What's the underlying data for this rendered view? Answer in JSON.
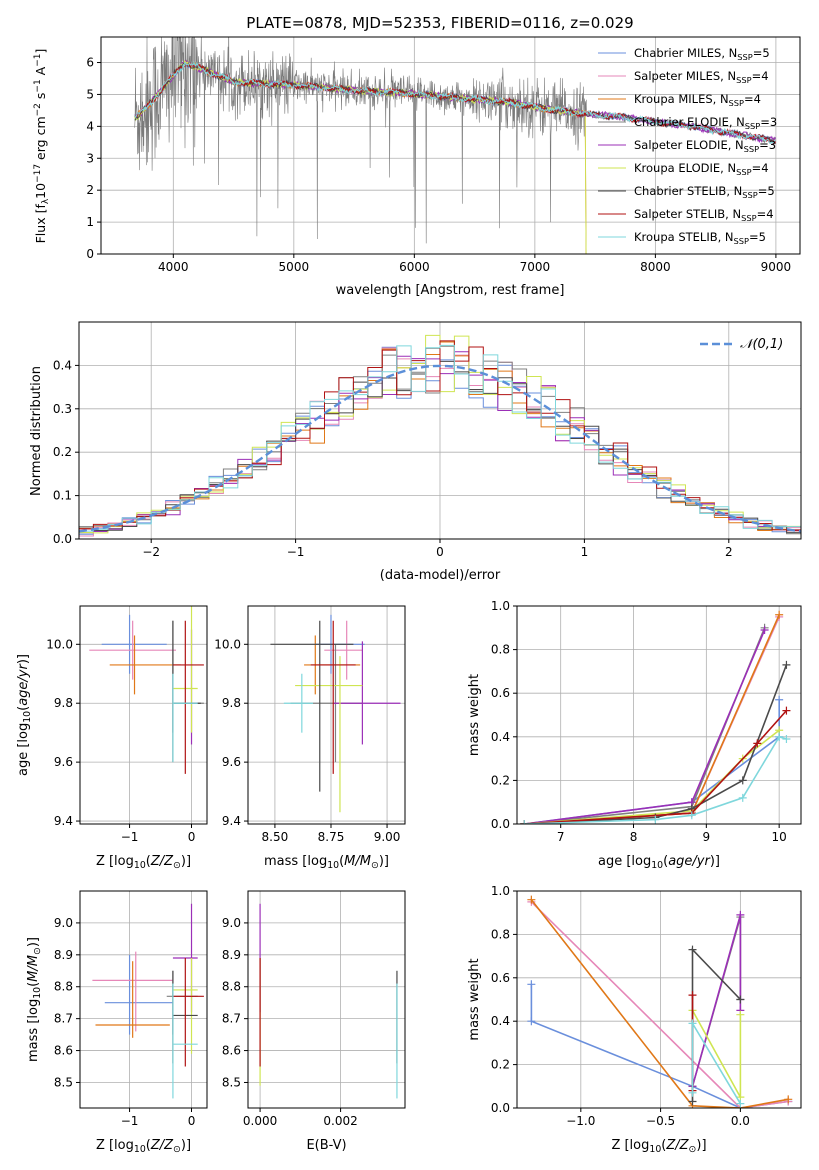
{
  "title": "PLATE=0878, MJD=52353, FIBERID=0116, z=0.029",
  "colors": {
    "chabrier_miles": "#6a8fdc",
    "salpeter_miles": "#e687b8",
    "kroupa_miles": "#e07818",
    "chabrier_elodie": "#808080",
    "salpeter_elodie": "#9b2fb7",
    "kroupa_elodie": "#cfe552",
    "chabrier_stelib": "#4a4a4a",
    "salpeter_stelib": "#b01212",
    "kroupa_stelib": "#7fd7dc",
    "gauss": "#5b8fd8"
  },
  "chart_data": [
    {
      "type": "line",
      "xlabel": "wavelength [Angstrom, rest frame]",
      "ylabel": "Flux [f_λ10^-17 erg cm^-2 s^-1 A^-1]",
      "xlim": [
        3400,
        9200
      ],
      "ylim": [
        0,
        6.8
      ],
      "xticks": [
        4000,
        5000,
        6000,
        7000,
        8000,
        9000
      ],
      "yticks": [
        0,
        1,
        2,
        3,
        4,
        5,
        6
      ],
      "legend_position": "right",
      "legend": [
        {
          "label": "Chabrier MILES, N",
          "sub": "SSP",
          "suffix": "=5",
          "color_key": "chabrier_miles"
        },
        {
          "label": "Salpeter MILES, N",
          "sub": "SSP",
          "suffix": "=4",
          "color_key": "salpeter_miles"
        },
        {
          "label": "Kroupa MILES, N",
          "sub": "SSP",
          "suffix": "=4",
          "color_key": "kroupa_miles"
        },
        {
          "label": "Chabrier ELODIE, N",
          "sub": "SSP",
          "suffix": "=3",
          "color_key": "chabrier_elodie"
        },
        {
          "label": "Salpeter ELODIE, N",
          "sub": "SSP",
          "suffix": "=3",
          "color_key": "salpeter_elodie"
        },
        {
          "label": "Kroupa ELODIE, N",
          "sub": "SSP",
          "suffix": "=4",
          "color_key": "kroupa_elodie"
        },
        {
          "label": "Chabrier STELIB, N",
          "sub": "SSP",
          "suffix": "=5",
          "color_key": "chabrier_stelib"
        },
        {
          "label": "Salpeter STELIB, N",
          "sub": "SSP",
          "suffix": "=4",
          "color_key": "salpeter_stelib"
        },
        {
          "label": "Kroupa STELIB, N",
          "sub": "SSP",
          "suffix": "=5",
          "color_key": "kroupa_stelib"
        }
      ],
      "data_range": [
        3680,
        7430
      ],
      "model_range": [
        3680,
        9000
      ],
      "model_anchors_x": [
        3700,
        3850,
        4000,
        4100,
        4300,
        4500,
        4700,
        5000,
        5300,
        5600,
        5900,
        6200,
        6500,
        6800,
        7100,
        7400,
        7700,
        8000,
        8300,
        8600,
        9000
      ],
      "model_anchors_y": [
        4.3,
        4.9,
        5.6,
        6.0,
        5.7,
        5.4,
        5.35,
        5.3,
        5.2,
        5.1,
        5.05,
        4.95,
        4.85,
        4.75,
        4.55,
        4.4,
        4.3,
        4.15,
        4.0,
        3.8,
        3.55
      ]
    },
    {
      "type": "line",
      "xlabel": "(data-model)/error",
      "ylabel": "Normed distribution",
      "xlim": [
        -2.5,
        2.5
      ],
      "ylim": [
        0,
        0.5
      ],
      "xticks": [
        -2,
        -1,
        0,
        1,
        2
      ],
      "yticks": [
        0.0,
        0.1,
        0.2,
        0.3,
        0.4
      ],
      "legend_position": "top-right",
      "legend_label": "𝒩(0,1)",
      "bin_width": 0.1,
      "gauss": {
        "mean": 0,
        "sigma": 1
      }
    },
    {
      "type": "scatter",
      "xlabel": "Z [log10(Z/Z⊙)]",
      "ylabel": "age  [log10(age/yr)]",
      "xlim": [
        -1.8,
        0.25
      ],
      "ylim": [
        9.39,
        10.13
      ],
      "xticks": [
        -1,
        0
      ],
      "yticks": [
        9.4,
        9.6,
        9.8,
        10.0
      ],
      "points": [
        {
          "series": "chabrier_miles",
          "x": -1.0,
          "xerr": [
            0.45,
            0.6
          ],
          "y": 10.0,
          "yerr": [
            0.1,
            0.1
          ]
        },
        {
          "series": "salpeter_miles",
          "x": -0.95,
          "xerr": [
            0.7,
            0.7
          ],
          "y": 9.98,
          "yerr": [
            0.1,
            0.1
          ]
        },
        {
          "series": "kroupa_miles",
          "x": -0.92,
          "xerr": [
            0.4,
            0.75
          ],
          "y": 9.93,
          "yerr": [
            0.1,
            0.1
          ]
        },
        {
          "series": "chabrier_elodie",
          "x": -0.3,
          "xerr": [
            0.0,
            0.5
          ],
          "y": 9.8,
          "yerr": [
            0.1,
            0.28
          ]
        },
        {
          "series": "salpeter_elodie",
          "x": 0.0,
          "xerr": [
            0.1,
            0.1
          ],
          "y": 9.8,
          "yerr": [
            0.14,
            0.25
          ]
        },
        {
          "series": "kroupa_elodie",
          "x": 0.0,
          "xerr": [
            0.3,
            0.1
          ],
          "y": 9.85,
          "yerr": [
            0.15,
            0.42
          ]
        },
        {
          "series": "chabrier_stelib",
          "x": -0.3,
          "xerr": [
            0.0,
            0.45
          ],
          "y": 9.8,
          "yerr": [
            0.2,
            0.28
          ]
        },
        {
          "series": "salpeter_stelib",
          "x": -0.1,
          "xerr": [
            0.2,
            0.3
          ],
          "y": 9.93,
          "yerr": [
            0.37,
            0.15
          ]
        },
        {
          "series": "kroupa_stelib",
          "x": -0.3,
          "xerr": [
            0.0,
            0.4
          ],
          "y": 9.8,
          "yerr": [
            0.2,
            0.1
          ]
        }
      ]
    },
    {
      "type": "scatter",
      "xlabel": "mass [log10(M/M⊙)]",
      "ylabel": "",
      "xlim": [
        8.38,
        9.08
      ],
      "ylim": [
        9.39,
        10.13
      ],
      "xticks": [
        8.5,
        8.75,
        9.0
      ],
      "yticks": [
        9.4,
        9.6,
        9.8,
        10.0
      ],
      "points": [
        {
          "series": "chabrier_miles",
          "x": 8.75,
          "xerr": [
            0.07,
            0.15
          ],
          "y": 10.0,
          "yerr": [
            0.1,
            0.1
          ]
        },
        {
          "series": "salpeter_miles",
          "x": 8.82,
          "xerr": [
            0.1,
            0.07
          ],
          "y": 9.98,
          "yerr": [
            0.1,
            0.1
          ]
        },
        {
          "series": "kroupa_miles",
          "x": 8.68,
          "xerr": [
            0.05,
            0.2
          ],
          "y": 9.93,
          "yerr": [
            0.1,
            0.1
          ]
        },
        {
          "series": "chabrier_elodie",
          "x": 8.77,
          "xerr": [
            0.2,
            0.12
          ],
          "y": 9.8,
          "yerr": [
            0.2,
            0.2
          ]
        },
        {
          "series": "salpeter_elodie",
          "x": 8.89,
          "xerr": [
            0.13,
            0.17
          ],
          "y": 9.8,
          "yerr": [
            0.14,
            0.21
          ]
        },
        {
          "series": "kroupa_elodie",
          "x": 8.79,
          "xerr": [
            0.2,
            0.1
          ],
          "y": 9.86,
          "yerr": [
            0.43,
            0.1
          ]
        },
        {
          "series": "chabrier_stelib",
          "x": 8.7,
          "xerr": [
            0.22,
            0.15
          ],
          "y": 10.0,
          "yerr": [
            0.5,
            0.08
          ]
        },
        {
          "series": "salpeter_stelib",
          "x": 8.76,
          "xerr": [
            0.1,
            0.1
          ],
          "y": 9.93,
          "yerr": [
            0.37,
            0.15
          ]
        },
        {
          "series": "kroupa_stelib",
          "x": 8.62,
          "xerr": [
            0.08,
            0.05
          ],
          "y": 9.8,
          "yerr": [
            0.1,
            0.1
          ]
        }
      ]
    },
    {
      "type": "line",
      "xlabel": "age  [log10(age/yr)]",
      "ylabel": "mass weight",
      "xlim": [
        6.4,
        10.3
      ],
      "ylim": [
        0,
        1
      ],
      "xticks": [
        7,
        8,
        9,
        10
      ],
      "yticks": [
        0.0,
        0.2,
        0.4,
        0.6,
        0.8,
        1.0
      ],
      "series": [
        {
          "name": "chabrier_miles",
          "x": [
            6.5,
            8.8,
            10.0,
            10.0
          ],
          "y": [
            0.0,
            0.1,
            0.4,
            0.57
          ]
        },
        {
          "name": "salpeter_miles",
          "x": [
            6.5,
            8.8,
            10.0
          ],
          "y": [
            0.0,
            0.05,
            0.95
          ]
        },
        {
          "name": "kroupa_miles",
          "x": [
            6.5,
            8.8,
            10.0
          ],
          "y": [
            0.0,
            0.05,
            0.96
          ]
        },
        {
          "name": "chabrier_elodie",
          "x": [
            6.5,
            8.8,
            9.8
          ],
          "y": [
            0.0,
            0.08,
            0.9
          ]
        },
        {
          "name": "salpeter_elodie",
          "x": [
            6.5,
            8.8,
            9.8
          ],
          "y": [
            0.0,
            0.1,
            0.89
          ]
        },
        {
          "name": "kroupa_elodie",
          "x": [
            6.5,
            8.8,
            9.5,
            10.0
          ],
          "y": [
            0.0,
            0.06,
            0.3,
            0.43
          ]
        },
        {
          "name": "chabrier_stelib",
          "x": [
            6.5,
            8.3,
            8.8,
            9.5,
            10.1
          ],
          "y": [
            0.0,
            0.03,
            0.07,
            0.2,
            0.73
          ]
        },
        {
          "name": "salpeter_stelib",
          "x": [
            6.5,
            8.8,
            9.7,
            10.1
          ],
          "y": [
            0.0,
            0.05,
            0.37,
            0.52
          ]
        },
        {
          "name": "kroupa_stelib",
          "x": [
            6.5,
            8.3,
            8.8,
            9.5,
            10.0,
            10.1
          ],
          "y": [
            0.0,
            0.02,
            0.04,
            0.12,
            0.4,
            0.39
          ]
        }
      ]
    },
    {
      "type": "scatter",
      "xlabel": "Z [log10(Z/Z⊙)]",
      "ylabel": "mass [log10(M/M⊙)]",
      "xlim": [
        -1.8,
        0.25
      ],
      "ylim": [
        8.42,
        9.1
      ],
      "xticks": [
        -1,
        0
      ],
      "yticks": [
        8.5,
        8.6,
        8.7,
        8.8,
        8.9,
        9.0
      ],
      "points": [
        {
          "series": "chabrier_miles",
          "x": -1.0,
          "xerr": [
            0.4,
            0.7
          ],
          "y": 8.75,
          "yerr": [
            0.1,
            0.15
          ]
        },
        {
          "series": "salpeter_miles",
          "x": -0.9,
          "xerr": [
            0.7,
            0.6
          ],
          "y": 8.82,
          "yerr": [
            0.16,
            0.09
          ]
        },
        {
          "series": "kroupa_miles",
          "x": -0.95,
          "xerr": [
            0.6,
            0.6
          ],
          "y": 8.68,
          "yerr": [
            0.04,
            0.2
          ]
        },
        {
          "series": "chabrier_elodie",
          "x": -0.3,
          "xerr": [
            0.1,
            0.4
          ],
          "y": 8.77,
          "yerr": [
            0.12,
            0.08
          ]
        },
        {
          "series": "salpeter_elodie",
          "x": 0.0,
          "xerr": [
            0.3,
            0.1
          ],
          "y": 8.89,
          "yerr": [
            0.17,
            0.17
          ]
        },
        {
          "series": "kroupa_elodie",
          "x": 0.0,
          "xerr": [
            0.3,
            0.1
          ],
          "y": 8.79,
          "yerr": [
            0.2,
            0.1
          ]
        },
        {
          "series": "chabrier_stelib",
          "x": -0.3,
          "xerr": [
            0.0,
            0.4
          ],
          "y": 8.71,
          "yerr": [
            0.15,
            0.14
          ]
        },
        {
          "series": "salpeter_stelib",
          "x": -0.1,
          "xerr": [
            0.2,
            0.3
          ],
          "y": 8.77,
          "yerr": [
            0.22,
            0.12
          ]
        },
        {
          "series": "kroupa_stelib",
          "x": -0.3,
          "xerr": [
            0.0,
            0.4
          ],
          "y": 8.62,
          "yerr": [
            0.17,
            0.19
          ]
        }
      ]
    },
    {
      "type": "scatter",
      "xlabel": "E(B-V)",
      "ylabel": "",
      "xlim": [
        -0.0003,
        0.0036
      ],
      "ylim": [
        8.42,
        9.1
      ],
      "xticks": [
        0.0,
        0.002
      ],
      "xtick_labels": [
        "0.000",
        "0.002"
      ],
      "yticks": [
        8.5,
        8.6,
        8.7,
        8.8,
        8.9,
        9.0
      ],
      "points": [
        {
          "series": "salpeter_elodie",
          "x": 0.0,
          "xerr": [
            0,
            0
          ],
          "y": 8.89,
          "yerr": [
            0.17,
            0.17
          ]
        },
        {
          "series": "kroupa_elodie",
          "x": 0.0,
          "xerr": [
            0,
            0
          ],
          "y": 8.79,
          "yerr": [
            0.3,
            0.1
          ]
        },
        {
          "series": "salpeter_stelib",
          "x": 0.0,
          "xerr": [
            0,
            0
          ],
          "y": 8.77,
          "yerr": [
            0.22,
            0.12
          ]
        },
        {
          "series": "chabrier_stelib",
          "x": 0.0034,
          "xerr": [
            0,
            0
          ],
          "y": 8.71,
          "yerr": [
            0.15,
            0.14
          ]
        },
        {
          "series": "kroupa_stelib",
          "x": 0.0034,
          "xerr": [
            0,
            0
          ],
          "y": 8.62,
          "yerr": [
            0.17,
            0.19
          ]
        }
      ]
    },
    {
      "type": "line",
      "xlabel": "Z [log10(Z/Z⊙)]",
      "ylabel": "mass weight",
      "xlim": [
        -1.4,
        0.38
      ],
      "ylim": [
        0,
        1
      ],
      "xticks": [
        -1.0,
        -0.5,
        0.0
      ],
      "xtick_labels": [
        "−1.0",
        "−0.5",
        "0.0"
      ],
      "yticks": [
        0.0,
        0.2,
        0.4,
        0.6,
        0.8,
        1.0
      ],
      "series": [
        {
          "name": "chabrier_miles",
          "x": [
            -1.31,
            -1.31,
            -0.3,
            0.0,
            0.3
          ],
          "y": [
            0.57,
            0.4,
            0.1,
            0.0,
            0.03
          ]
        },
        {
          "name": "salpeter_miles",
          "x": [
            -1.31,
            0.0,
            0.3
          ],
          "y": [
            0.95,
            0.0,
            0.03
          ]
        },
        {
          "name": "kroupa_miles",
          "x": [
            -1.31,
            -0.3,
            0.0,
            0.3
          ],
          "y": [
            0.96,
            0.01,
            0.0,
            0.04
          ]
        },
        {
          "name": "chabrier_elodie",
          "x": [
            -0.3,
            0.0,
            0.0
          ],
          "y": [
            0.1,
            0.88,
            0.5
          ]
        },
        {
          "name": "salpeter_elodie",
          "x": [
            -0.3,
            0.0,
            0.0
          ],
          "y": [
            0.1,
            0.89,
            0.45
          ]
        },
        {
          "name": "kroupa_elodie",
          "x": [
            -0.3,
            0.0,
            0.0
          ],
          "y": [
            0.45,
            0.05,
            0.43
          ]
        },
        {
          "name": "chabrier_stelib",
          "x": [
            -0.3,
            -0.3,
            0.0
          ],
          "y": [
            0.03,
            0.73,
            0.5
          ]
        },
        {
          "name": "salpeter_stelib",
          "x": [
            -0.3,
            -0.3
          ],
          "y": [
            0.08,
            0.52
          ]
        },
        {
          "name": "kroupa_stelib",
          "x": [
            -0.3,
            -0.3,
            0.0
          ],
          "y": [
            0.07,
            0.39,
            0.02
          ]
        }
      ]
    }
  ]
}
